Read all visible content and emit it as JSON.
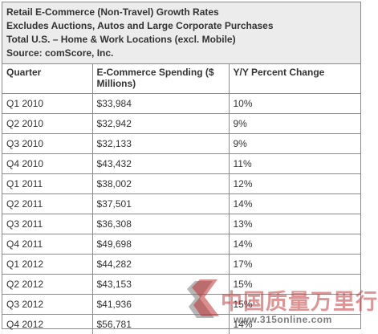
{
  "header": {
    "lines": [
      "Retail E-Commerce (Non-Travel) Growth Rates",
      "Excludes Auctions, Autos and Large Corporate Purchases",
      "Total U.S. – Home & Work Locations (excl. Mobile)",
      "Source: comScore, Inc."
    ]
  },
  "table": {
    "columns": [
      "Quarter",
      "E-Commerce Spending ($ Millions)",
      "Y/Y Percent Change"
    ],
    "rows": [
      [
        "Q1 2010",
        "$33,984",
        "10%"
      ],
      [
        "Q2 2010",
        "$32,942",
        "9%"
      ],
      [
        "Q3 2010",
        "$32,133",
        "9%"
      ],
      [
        "Q4 2010",
        "$43,432",
        "11%"
      ],
      [
        "Q1 2011",
        "$38,002",
        "12%"
      ],
      [
        "Q2 2011",
        "$37,501",
        "14%"
      ],
      [
        "Q3 2011",
        "$36,308",
        "13%"
      ],
      [
        "Q4 2011",
        "$49,698",
        "14%"
      ],
      [
        "Q1 2012",
        "$44,282",
        "17%"
      ],
      [
        "Q2 2012",
        "$43,153",
        "15%"
      ],
      [
        "Q3 2012",
        "$41,936",
        "15%"
      ],
      [
        "Q4 2012",
        "$56,781",
        "14%"
      ]
    ]
  },
  "chart_data": {
    "type": "table",
    "title": "Retail E-Commerce (Non-Travel) Growth Rates",
    "columns": [
      "Quarter",
      "E-Commerce Spending ($ Millions)",
      "Y/Y Percent Change"
    ],
    "categories": [
      "Q1 2010",
      "Q2 2010",
      "Q3 2010",
      "Q4 2010",
      "Q1 2011",
      "Q2 2011",
      "Q3 2011",
      "Q4 2011",
      "Q1 2012",
      "Q2 2012",
      "Q3 2012",
      "Q4 2012"
    ],
    "series": [
      {
        "name": "E-Commerce Spending ($ Millions)",
        "values": [
          33984,
          32942,
          32133,
          43432,
          38002,
          37501,
          36308,
          49698,
          44282,
          43153,
          41936,
          56781
        ]
      },
      {
        "name": "Y/Y Percent Change",
        "values": [
          10,
          9,
          9,
          11,
          12,
          14,
          13,
          14,
          17,
          15,
          15,
          14
        ]
      }
    ]
  },
  "watermark": {
    "name": "中国质量万里行",
    "url": "www.315online.com",
    "colors": {
      "logo": "#c03232",
      "logo_shadow": "#7a7a7a"
    }
  },
  "colors": {
    "header_bg": "#ececec",
    "border": "#8a8a8a",
    "text": "#333333"
  }
}
